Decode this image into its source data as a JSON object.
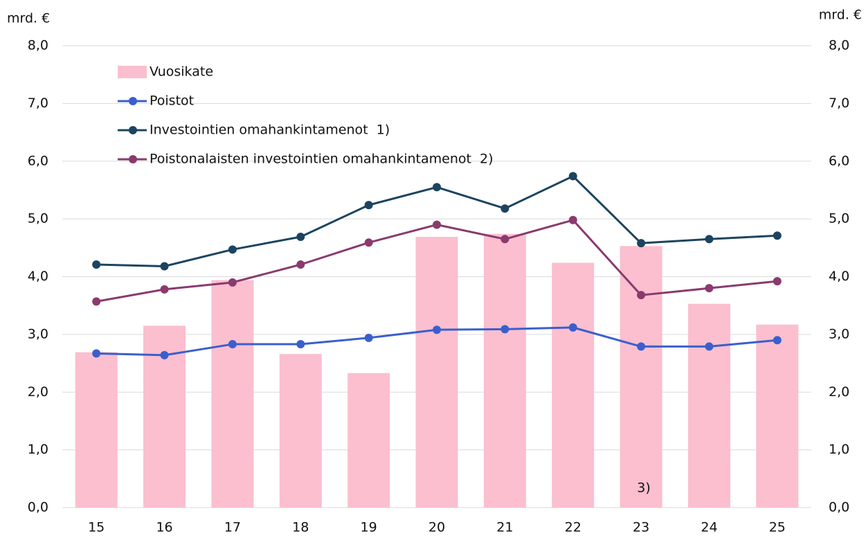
{
  "chart_data": {
    "type": "bar",
    "y_label": "mrd. €",
    "y2_label": "mrd. €",
    "annotation": "3)",
    "categories": [
      "15",
      "16",
      "17",
      "18",
      "19",
      "20",
      "21",
      "22",
      "23",
      "24",
      "25"
    ],
    "series": [
      {
        "name": "Vuosikate",
        "type": "bar",
        "color": "#fbbfcf",
        "values": [
          2.69,
          3.15,
          3.94,
          2.66,
          2.33,
          4.69,
          4.74,
          4.24,
          4.53,
          3.53,
          3.17
        ]
      },
      {
        "name": "Poistot",
        "type": "line",
        "color": "#3a5fcd",
        "values": [
          2.67,
          2.64,
          2.83,
          2.83,
          2.94,
          3.08,
          3.09,
          3.12,
          2.79,
          2.79,
          2.9
        ]
      },
      {
        "name": "Investointien omahankintamenot  1)",
        "type": "line",
        "color": "#1c4460",
        "values": [
          4.21,
          4.18,
          4.47,
          4.69,
          5.24,
          5.55,
          5.18,
          5.74,
          4.58,
          4.65,
          4.71
        ]
      },
      {
        "name": "Poistonalaisten investointien omahankintamenot  2)",
        "type": "line",
        "color": "#8a3a6e",
        "values": [
          3.57,
          3.78,
          3.9,
          4.21,
          4.59,
          4.9,
          4.65,
          4.98,
          3.68,
          3.8,
          3.92
        ]
      }
    ],
    "ylim": [
      0,
      8
    ],
    "yticks": [
      {
        "value": 0,
        "label": "0,0"
      },
      {
        "value": 1,
        "label": "1,0"
      },
      {
        "value": 2,
        "label": "2,0"
      },
      {
        "value": 3,
        "label": "3,0"
      },
      {
        "value": 4,
        "label": "4,0"
      },
      {
        "value": 5,
        "label": "5,0"
      },
      {
        "value": 6,
        "label": "6,0"
      },
      {
        "value": 7,
        "label": "7,0"
      },
      {
        "value": 8,
        "label": "8,0"
      }
    ],
    "y2lim": [
      0,
      8
    ],
    "y2ticks": [
      {
        "value": 0,
        "label": "0,0"
      },
      {
        "value": 1,
        "label": "1,0"
      },
      {
        "value": 2,
        "label": "2,0"
      },
      {
        "value": 3,
        "label": "3,0"
      },
      {
        "value": 4,
        "label": "4,0"
      },
      {
        "value": 5,
        "label": "5,0"
      },
      {
        "value": 6,
        "label": "6,0"
      },
      {
        "value": 7,
        "label": "7,0"
      },
      {
        "value": 8,
        "label": "8,0"
      }
    ],
    "grid": true,
    "legend": "upper left"
  }
}
